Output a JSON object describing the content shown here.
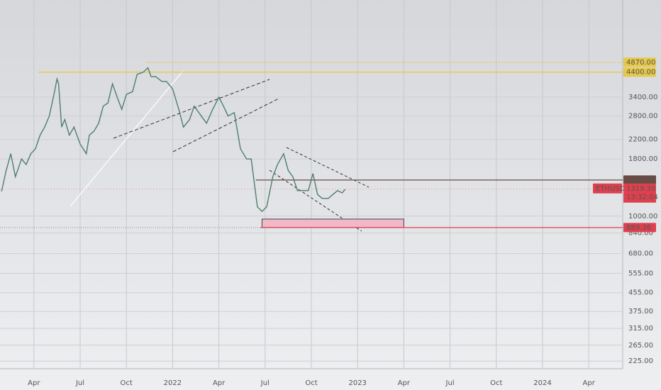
{
  "chart_data": {
    "type": "line",
    "log_scale": true,
    "grid": true,
    "x": [
      0.9,
      1.2,
      1.5,
      1.8,
      2.2,
      2.5,
      2.8,
      3.1,
      3.4,
      3.7,
      4.0,
      4.3,
      4.5,
      4.6,
      4.8,
      5.0,
      5.3,
      5.6,
      6.0,
      6.4,
      6.6,
      6.9,
      7.2,
      7.5,
      7.8,
      8.1,
      8.4,
      8.7,
      9.0,
      9.4,
      9.7,
      10.1,
      10.4,
      10.6,
      10.9,
      11.3,
      11.6,
      12.0,
      12.4,
      12.7,
      13.1,
      13.4,
      13.7,
      14.2,
      14.6,
      15.0,
      15.3,
      15.6,
      16.0,
      16.4,
      16.8,
      17.1,
      17.5,
      17.8,
      18.1,
      18.5,
      18.8,
      19.2,
      19.5,
      19.8,
      20.1,
      20.5,
      20.8,
      21.1,
      21.4,
      21.7,
      22.1,
      22.4,
      22.7,
      23.0,
      23.2
    ],
    "series": [
      {
        "name": "ETHUSD",
        "color": "#4f7f6a",
        "values": [
          1290,
          1600,
          1900,
          1500,
          1800,
          1700,
          1900,
          2000,
          2300,
          2500,
          2800,
          3500,
          4100,
          3900,
          2500,
          2700,
          2300,
          2500,
          2100,
          1900,
          2300,
          2400,
          2600,
          3100,
          3200,
          3900,
          3400,
          3000,
          3500,
          3600,
          4300,
          4400,
          4600,
          4200,
          4200,
          4000,
          4000,
          3700,
          3000,
          2500,
          2700,
          3100,
          2900,
          2600,
          3000,
          3400,
          3100,
          2800,
          2900,
          2000,
          1800,
          1800,
          1100,
          1050,
          1100,
          1500,
          1700,
          1900,
          1600,
          1500,
          1300,
          1300,
          1300,
          1550,
          1250,
          1200,
          1200,
          1250,
          1300,
          1270,
          1319.3
        ]
      }
    ],
    "xlim": [
      0.8,
      41.2
    ],
    "xticks": [
      {
        "value": 3,
        "label": "Apr"
      },
      {
        "value": 6,
        "label": "Jul"
      },
      {
        "value": 9,
        "label": "Oct"
      },
      {
        "value": 12,
        "label": "2022"
      },
      {
        "value": 15,
        "label": "Apr"
      },
      {
        "value": 18,
        "label": "Jul"
      },
      {
        "value": 21,
        "label": "Oct"
      },
      {
        "value": 24,
        "label": "2023"
      },
      {
        "value": 27,
        "label": "Apr"
      },
      {
        "value": 30,
        "label": "Jul"
      },
      {
        "value": 33,
        "label": "Oct"
      },
      {
        "value": 36,
        "label": "2024"
      },
      {
        "value": 39,
        "label": "Apr"
      }
    ],
    "ylim": [
      208,
      9240
    ],
    "yticks": [
      {
        "value": 3400,
        "label": "3400.00"
      },
      {
        "value": 2800,
        "label": "2800.00"
      },
      {
        "value": 2200,
        "label": "2200.00"
      },
      {
        "value": 1800,
        "label": "1800.00"
      },
      {
        "value": 1000,
        "label": "1000.00"
      },
      {
        "value": 840,
        "label": "840.00"
      },
      {
        "value": 680,
        "label": "680.00"
      },
      {
        "value": 555,
        "label": "555.00"
      },
      {
        "value": 455,
        "label": "455.00"
      },
      {
        "value": 375,
        "label": "375.00"
      },
      {
        "value": 315,
        "label": "315.00"
      },
      {
        "value": 265,
        "label": "265.00"
      },
      {
        "value": 225,
        "label": "225.00"
      }
    ],
    "levels": [
      {
        "value": 4870,
        "label": "4870.00",
        "color": "#e6c84a",
        "x_start": 10.3,
        "style": "dotted"
      },
      {
        "value": 4400,
        "label": "4400.00",
        "color": "#e6c84a",
        "x_start": 3.3,
        "style": "solid"
      },
      {
        "value": 1449.36,
        "label": "1449.36",
        "color": "#6b4a42",
        "x_start": 17.4,
        "style": "solid"
      },
      {
        "value": 889.36,
        "label": "889.36",
        "color": "#e0404e",
        "x_start": 17.7,
        "style": "solid"
      }
    ],
    "zone": {
      "x": [
        17.8,
        27.0
      ],
      "y": [
        889.36,
        970
      ],
      "color": "#f2b8c8"
    },
    "symbol": "ETHUSD",
    "last_price": {
      "value": 1319.3,
      "label": "1319.30"
    },
    "countdown": "13:32:04"
  }
}
